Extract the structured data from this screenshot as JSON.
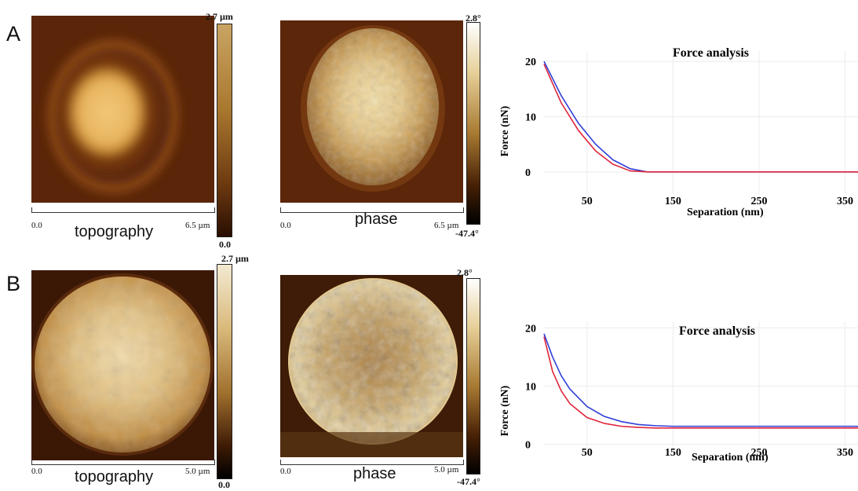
{
  "figure": {
    "panel_a_label": "A",
    "panel_b_label": "B",
    "caption_topography": "topography",
    "caption_phase": "phase",
    "row_a": {
      "topo_scale_start": "0.0",
      "topo_scale_end": "6.5 µm",
      "topo_bar_max": "2.7 µm",
      "topo_bar_min": "0.0",
      "phase_scale_start": "0.0",
      "phase_scale_end": "6.5 µm",
      "phase_bar_max": "2.8°",
      "phase_bar_min": "-47.4°"
    },
    "row_b": {
      "topo_scale_start": "0.0",
      "topo_scale_end": "5.0 µm",
      "topo_bar_max": "2.7 µm",
      "topo_bar_min": "0.0",
      "phase_scale_start": "0.0",
      "phase_scale_end": "5.0 µm",
      "phase_bar_max": "2.8°",
      "phase_bar_min": "-47.4°"
    },
    "colors": {
      "afm_dark": "#4a1d05",
      "afm_mid": "#a86a25",
      "afm_light": "#f0d79a",
      "approach_curve": "#2f3fd8",
      "retract_curve": "#e0243a"
    }
  },
  "chart_data": [
    {
      "type": "line",
      "title": "Force analysis",
      "xlabel": "Separation (nm)",
      "ylabel": "Force (nN)",
      "xlim": [
        0,
        365
      ],
      "ylim": [
        -4,
        22
      ],
      "xticks": [
        50,
        150,
        250,
        350
      ],
      "xtick_labels": [
        "50",
        "150",
        "250",
        "350"
      ],
      "yticks": [
        0,
        10,
        20
      ],
      "ytick_labels": [
        "0",
        "10",
        "20"
      ],
      "grid": true,
      "series": [
        {
          "x": [
            0,
            20,
            40,
            60,
            80,
            100,
            120,
            140,
            200,
            300,
            365
          ],
          "y": [
            20,
            13.8,
            8.8,
            5,
            2.2,
            0.6,
            0,
            0,
            0,
            0,
            0
          ]
        },
        {
          "x": [
            0,
            20,
            40,
            60,
            80,
            100,
            120,
            140,
            200,
            300,
            365
          ],
          "y": [
            19.5,
            12.5,
            7.5,
            3.8,
            1.4,
            0.2,
            0,
            0,
            0,
            0,
            0
          ]
        }
      ]
    },
    {
      "type": "line",
      "title": "Force analysis",
      "xlabel": "Separation (nm)",
      "ylabel": "Force (nN)",
      "xlim": [
        0,
        365
      ],
      "ylim": [
        -1,
        21
      ],
      "xticks": [
        50,
        150,
        250,
        350
      ],
      "xtick_labels": [
        "50",
        "150",
        "250",
        "350"
      ],
      "yticks": [
        0,
        10,
        20
      ],
      "ytick_labels": [
        "0",
        "10",
        "20"
      ],
      "grid": true,
      "series": [
        {
          "x": [
            0,
            10,
            20,
            30,
            50,
            70,
            90,
            110,
            130,
            150,
            200,
            300,
            365
          ],
          "y": [
            19,
            15,
            11.8,
            9.5,
            6.5,
            4.8,
            3.9,
            3.4,
            3.2,
            3.1,
            3.1,
            3.1,
            3.1
          ]
        },
        {
          "x": [
            0,
            10,
            20,
            30,
            50,
            70,
            90,
            110,
            130,
            150,
            200,
            300,
            365
          ],
          "y": [
            18.5,
            12.5,
            9.2,
            7,
            4.6,
            3.6,
            3.1,
            2.9,
            2.8,
            2.8,
            2.8,
            2.8,
            2.8
          ]
        }
      ]
    }
  ]
}
